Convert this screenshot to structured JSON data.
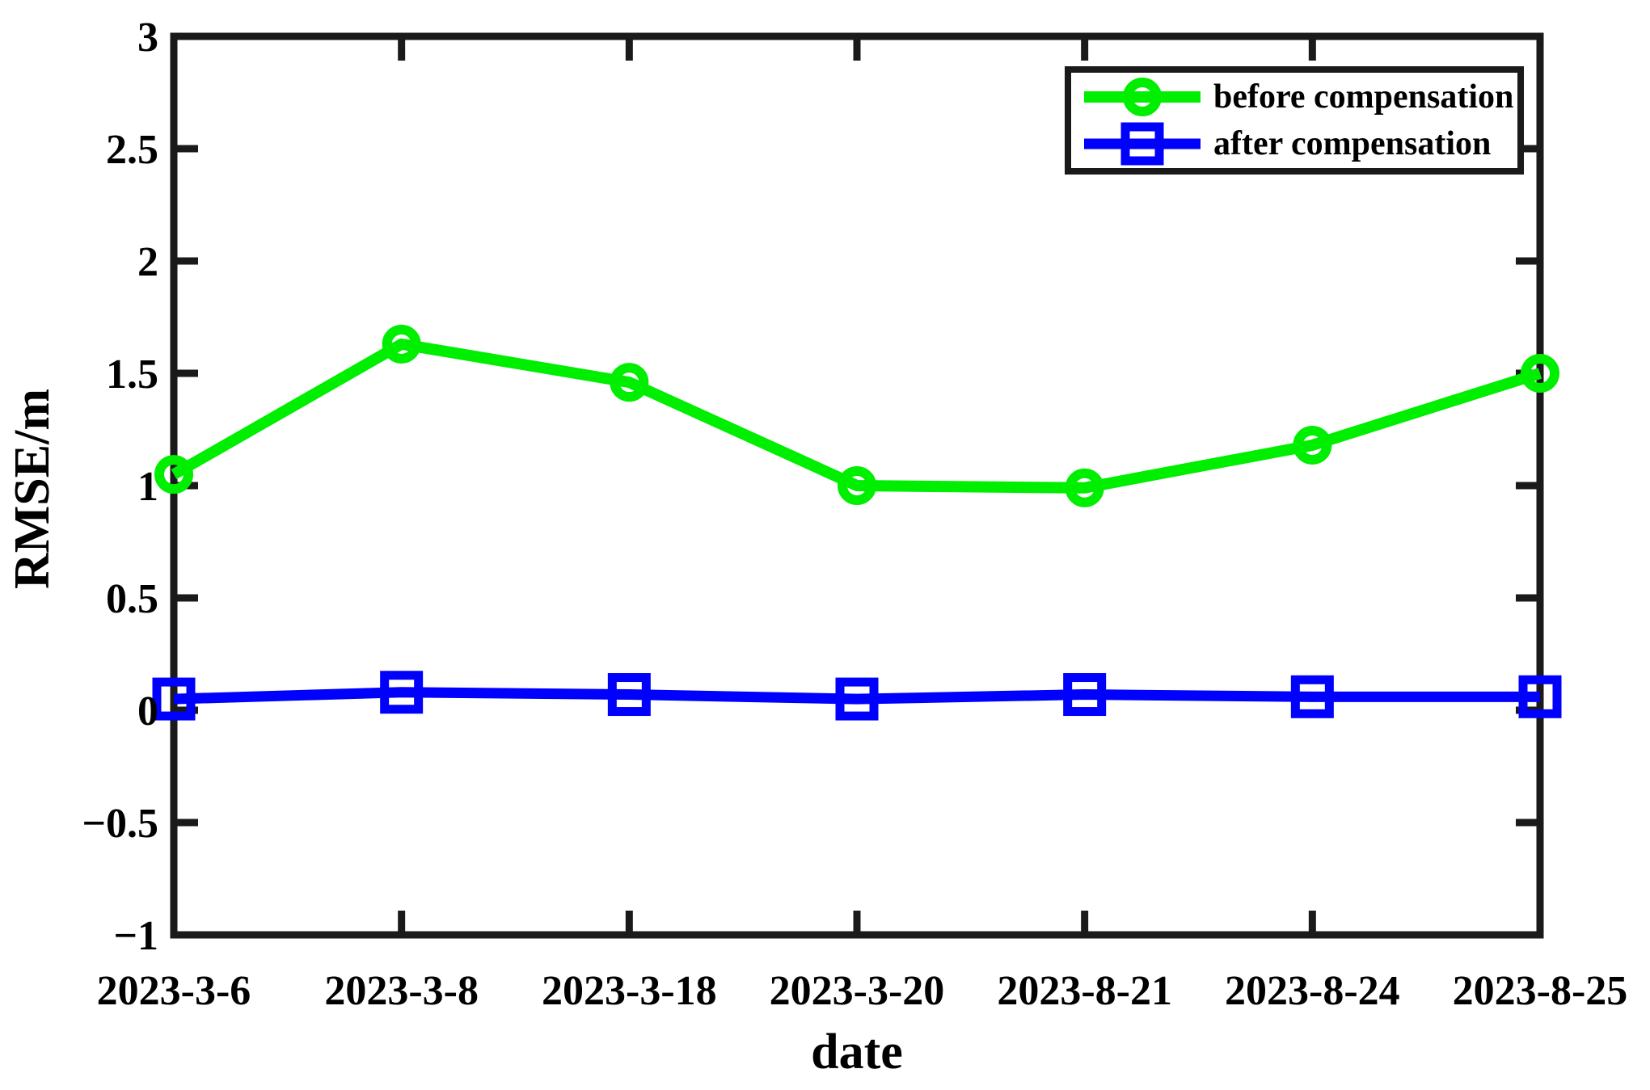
{
  "figure": {
    "background": "#ffffff",
    "axis_color": "#1a1a1a",
    "text_color": "#000000"
  },
  "chart_data": {
    "type": "line",
    "title": "",
    "xlabel": "date",
    "ylabel": "RMSE/m",
    "categories": [
      "2023-3-6",
      "2023-3-8",
      "2023-3-18",
      "2023-3-20",
      "2023-8-21",
      "2023-8-24",
      "2023-8-25"
    ],
    "series": [
      {
        "name": "before compensation",
        "color": "#00ee00",
        "marker": "circle",
        "values": [
          1.05,
          1.63,
          1.46,
          1.0,
          0.99,
          1.18,
          1.5
        ]
      },
      {
        "name": "after compensation",
        "color": "#0000ff",
        "marker": "square",
        "values": [
          0.05,
          0.08,
          0.07,
          0.05,
          0.07,
          0.06,
          0.06
        ]
      }
    ],
    "ylim": [
      -1,
      3
    ],
    "ytick_step": 0.5,
    "y_tick_labels": [
      "3",
      "2.5",
      "2",
      "1.5",
      "1",
      "0.5",
      "0",
      "−0.5",
      "−1"
    ],
    "grid": false,
    "box": true,
    "legend_position": "top-right"
  }
}
